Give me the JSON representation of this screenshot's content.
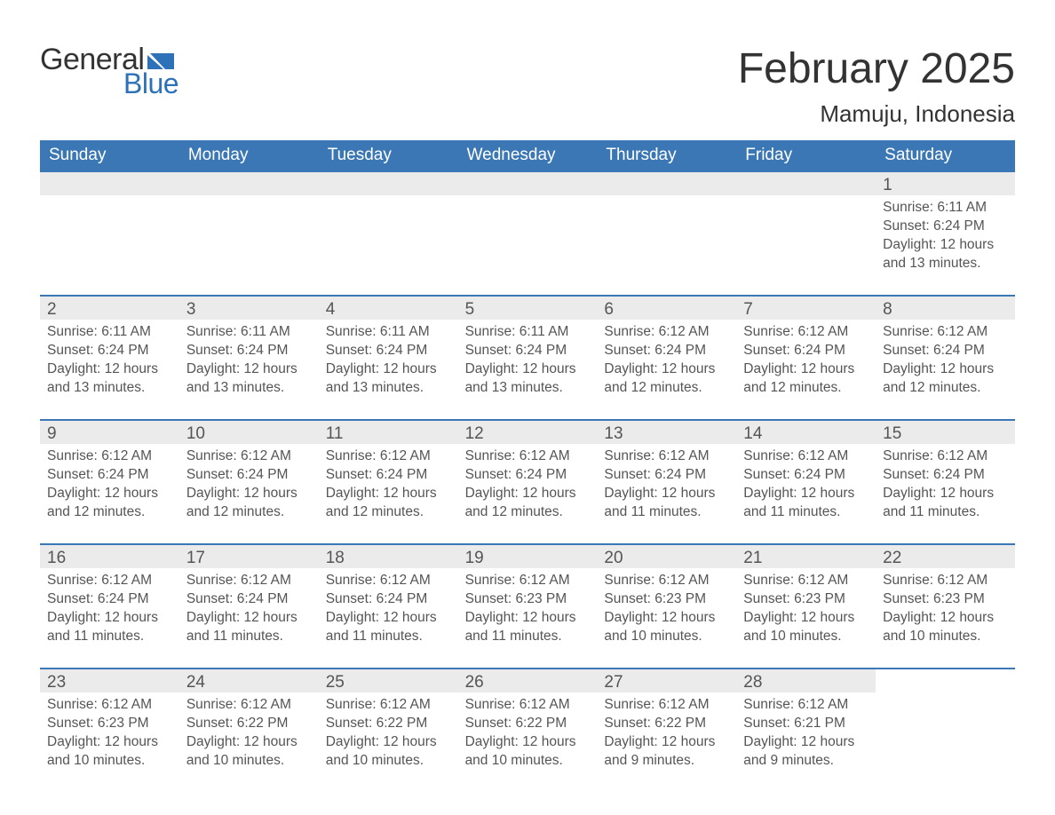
{
  "logo": {
    "word1": "General",
    "word2": "Blue",
    "flag_color": "#2d72b8"
  },
  "header": {
    "title": "February 2025",
    "location": "Mamuju, Indonesia"
  },
  "colors": {
    "header_bg": "#3b77b5",
    "header_text": "#ffffff",
    "row_border": "#3b77b5",
    "daynum_bg": "#ebebeb",
    "body_text": "#555555",
    "page_bg": "#ffffff"
  },
  "weekdays": [
    "Sunday",
    "Monday",
    "Tuesday",
    "Wednesday",
    "Thursday",
    "Friday",
    "Saturday"
  ],
  "labels": {
    "sunrise": "Sunrise:",
    "sunset": "Sunset:",
    "daylight": "Daylight:"
  },
  "weeks": [
    [
      {
        "empty": true
      },
      {
        "empty": true
      },
      {
        "empty": true
      },
      {
        "empty": true
      },
      {
        "empty": true
      },
      {
        "empty": true
      },
      {
        "day": "1",
        "sunrise": "6:11 AM",
        "sunset": "6:24 PM",
        "daylight": "12 hours and 13 minutes."
      }
    ],
    [
      {
        "day": "2",
        "sunrise": "6:11 AM",
        "sunset": "6:24 PM",
        "daylight": "12 hours and 13 minutes."
      },
      {
        "day": "3",
        "sunrise": "6:11 AM",
        "sunset": "6:24 PM",
        "daylight": "12 hours and 13 minutes."
      },
      {
        "day": "4",
        "sunrise": "6:11 AM",
        "sunset": "6:24 PM",
        "daylight": "12 hours and 13 minutes."
      },
      {
        "day": "5",
        "sunrise": "6:11 AM",
        "sunset": "6:24 PM",
        "daylight": "12 hours and 13 minutes."
      },
      {
        "day": "6",
        "sunrise": "6:12 AM",
        "sunset": "6:24 PM",
        "daylight": "12 hours and 12 minutes."
      },
      {
        "day": "7",
        "sunrise": "6:12 AM",
        "sunset": "6:24 PM",
        "daylight": "12 hours and 12 minutes."
      },
      {
        "day": "8",
        "sunrise": "6:12 AM",
        "sunset": "6:24 PM",
        "daylight": "12 hours and 12 minutes."
      }
    ],
    [
      {
        "day": "9",
        "sunrise": "6:12 AM",
        "sunset": "6:24 PM",
        "daylight": "12 hours and 12 minutes."
      },
      {
        "day": "10",
        "sunrise": "6:12 AM",
        "sunset": "6:24 PM",
        "daylight": "12 hours and 12 minutes."
      },
      {
        "day": "11",
        "sunrise": "6:12 AM",
        "sunset": "6:24 PM",
        "daylight": "12 hours and 12 minutes."
      },
      {
        "day": "12",
        "sunrise": "6:12 AM",
        "sunset": "6:24 PM",
        "daylight": "12 hours and 12 minutes."
      },
      {
        "day": "13",
        "sunrise": "6:12 AM",
        "sunset": "6:24 PM",
        "daylight": "12 hours and 11 minutes."
      },
      {
        "day": "14",
        "sunrise": "6:12 AM",
        "sunset": "6:24 PM",
        "daylight": "12 hours and 11 minutes."
      },
      {
        "day": "15",
        "sunrise": "6:12 AM",
        "sunset": "6:24 PM",
        "daylight": "12 hours and 11 minutes."
      }
    ],
    [
      {
        "day": "16",
        "sunrise": "6:12 AM",
        "sunset": "6:24 PM",
        "daylight": "12 hours and 11 minutes."
      },
      {
        "day": "17",
        "sunrise": "6:12 AM",
        "sunset": "6:24 PM",
        "daylight": "12 hours and 11 minutes."
      },
      {
        "day": "18",
        "sunrise": "6:12 AM",
        "sunset": "6:24 PM",
        "daylight": "12 hours and 11 minutes."
      },
      {
        "day": "19",
        "sunrise": "6:12 AM",
        "sunset": "6:23 PM",
        "daylight": "12 hours and 11 minutes."
      },
      {
        "day": "20",
        "sunrise": "6:12 AM",
        "sunset": "6:23 PM",
        "daylight": "12 hours and 10 minutes."
      },
      {
        "day": "21",
        "sunrise": "6:12 AM",
        "sunset": "6:23 PM",
        "daylight": "12 hours and 10 minutes."
      },
      {
        "day": "22",
        "sunrise": "6:12 AM",
        "sunset": "6:23 PM",
        "daylight": "12 hours and 10 minutes."
      }
    ],
    [
      {
        "day": "23",
        "sunrise": "6:12 AM",
        "sunset": "6:23 PM",
        "daylight": "12 hours and 10 minutes."
      },
      {
        "day": "24",
        "sunrise": "6:12 AM",
        "sunset": "6:22 PM",
        "daylight": "12 hours and 10 minutes."
      },
      {
        "day": "25",
        "sunrise": "6:12 AM",
        "sunset": "6:22 PM",
        "daylight": "12 hours and 10 minutes."
      },
      {
        "day": "26",
        "sunrise": "6:12 AM",
        "sunset": "6:22 PM",
        "daylight": "12 hours and 10 minutes."
      },
      {
        "day": "27",
        "sunrise": "6:12 AM",
        "sunset": "6:22 PM",
        "daylight": "12 hours and 9 minutes."
      },
      {
        "day": "28",
        "sunrise": "6:12 AM",
        "sunset": "6:21 PM",
        "daylight": "12 hours and 9 minutes."
      },
      {
        "empty": true,
        "no_bar": true
      }
    ]
  ]
}
